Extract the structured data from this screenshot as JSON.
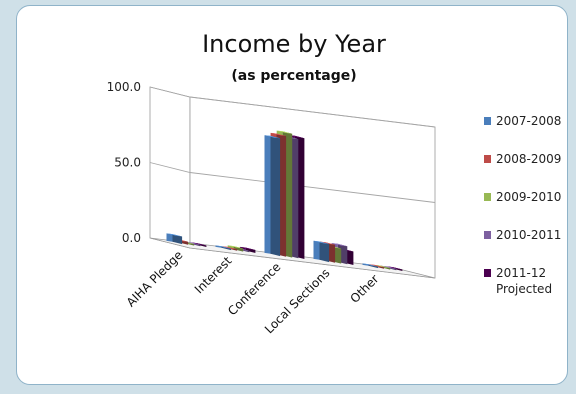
{
  "chart_data": {
    "type": "bar",
    "title": "Income by Year",
    "subtitle": "(as percentage)",
    "ylim": [
      0,
      100
    ],
    "yticks": [
      "0.0",
      "50.0",
      "100.0"
    ],
    "categories": [
      "AIHA Pledge",
      "Interest",
      "Conference",
      "Local Sections",
      "Other"
    ],
    "series": [
      {
        "name": "2007-2008",
        "color": "#4a7ebb",
        "values": [
          5,
          1,
          78,
          12,
          1
        ]
      },
      {
        "name": "2008-2009",
        "color": "#be4b48",
        "values": [
          2,
          1,
          80,
          12,
          1
        ]
      },
      {
        "name": "2009-2010",
        "color": "#98b954",
        "values": [
          1,
          2,
          82,
          10,
          1
        ]
      },
      {
        "name": "2010-2011",
        "color": "#7d60a0",
        "values": [
          1,
          1,
          79,
          12,
          1
        ]
      },
      {
        "name": "2011-12",
        "name_line2": "Projected",
        "color": "#4b0050",
        "values": [
          1,
          2,
          80,
          9,
          1
        ]
      }
    ],
    "legend_position": "right",
    "grid": true
  }
}
